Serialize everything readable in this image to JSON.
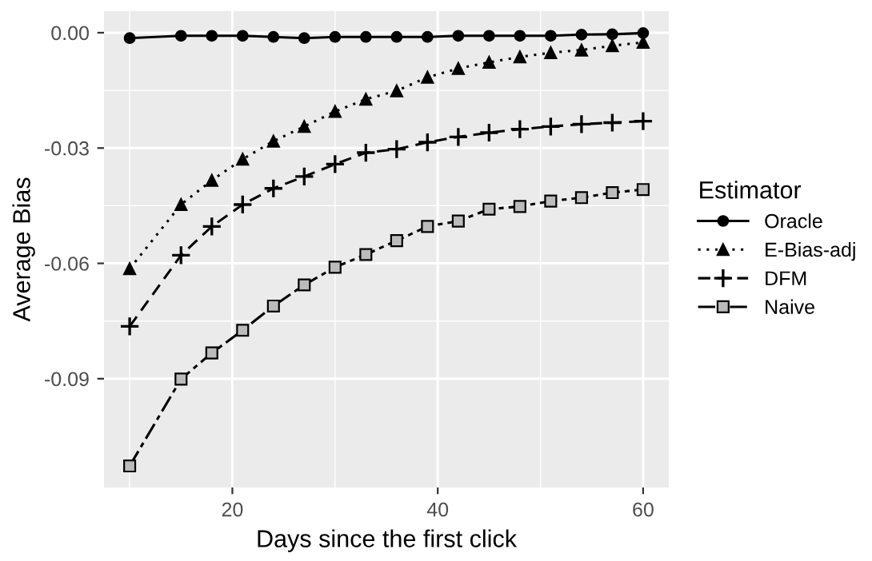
{
  "chart_data": {
    "type": "line",
    "xlabel": "Days since the first click",
    "ylabel": "Average Bias",
    "legend_title": "Estimator",
    "legend": "right",
    "grid": true,
    "x": [
      10,
      15,
      18,
      21,
      24,
      27,
      30,
      33,
      36,
      39,
      42,
      45,
      48,
      51,
      54,
      57,
      60
    ],
    "xlim": [
      7.5,
      62.5
    ],
    "xticks": [
      20,
      40,
      60
    ],
    "ylim": [
      -0.1183,
      0.0056
    ],
    "yticks": [
      {
        "value": 0,
        "label": "0.00"
      },
      {
        "value": -0.03,
        "label": "-0.03"
      },
      {
        "value": -0.06,
        "label": "-0.06"
      },
      {
        "value": -0.09,
        "label": "-0.09"
      }
    ],
    "series": [
      {
        "name": "Oracle",
        "color": "#000000",
        "marker": "circle",
        "line_style": "solid",
        "values": [
          -0.0014,
          -0.0008,
          -0.0008,
          -0.0008,
          -0.0011,
          -0.0014,
          -0.0011,
          -0.0011,
          -0.0011,
          -0.0011,
          -0.0008,
          -0.0008,
          -0.0008,
          -0.0008,
          -0.0005,
          -0.0004,
          -0.0001
        ]
      },
      {
        "name": "E-Bias-adj",
        "color": "#000000",
        "marker": "triangle",
        "line_style": "dotted",
        "values": [
          -0.0614,
          -0.0447,
          -0.0384,
          -0.0329,
          -0.0282,
          -0.0244,
          -0.0205,
          -0.0173,
          -0.0151,
          -0.0116,
          -0.0093,
          -0.0077,
          -0.0063,
          -0.0052,
          -0.0045,
          -0.0034,
          -0.0025
        ]
      },
      {
        "name": "DFM",
        "color": "#000000",
        "marker": "cross",
        "line_style": "dashed",
        "values": [
          -0.0764,
          -0.0579,
          -0.0504,
          -0.0447,
          -0.0405,
          -0.0374,
          -0.0342,
          -0.0312,
          -0.0303,
          -0.0285,
          -0.0271,
          -0.026,
          -0.0251,
          -0.0244,
          -0.0238,
          -0.0234,
          -0.023
        ]
      },
      {
        "name": "Naive",
        "color": "#000000",
        "marker": "square",
        "line_style": "dashed",
        "values": [
          -0.1127,
          -0.0901,
          -0.0833,
          -0.0774,
          -0.0711,
          -0.0656,
          -0.061,
          -0.0577,
          -0.0541,
          -0.0504,
          -0.049,
          -0.0459,
          -0.0452,
          -0.0438,
          -0.0429,
          -0.0416,
          -0.0408
        ]
      }
    ]
  }
}
